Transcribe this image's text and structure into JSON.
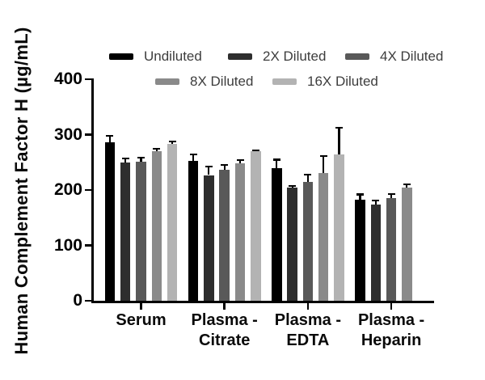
{
  "figure": {
    "background": "#ffffff",
    "axis_color": "#000000"
  },
  "chart_data": {
    "type": "bar",
    "title": "",
    "ylabel": "Human Complement Factor H (µg/mL)",
    "xlabel": "",
    "ylim": [
      0,
      400
    ],
    "yticks": [
      0,
      100,
      200,
      300,
      400
    ],
    "grid": false,
    "legend_position": "top",
    "error_direction": "up",
    "categories": [
      "Serum",
      "Plasma - Citrate",
      "Plasma - EDTA",
      "Plasma - Heparin"
    ],
    "category_lines": [
      [
        "Serum"
      ],
      [
        "Plasma -",
        "Citrate"
      ],
      [
        "Plasma -",
        "EDTA"
      ],
      [
        "Plasma -",
        "Heparin"
      ]
    ],
    "series": [
      {
        "name": "Undiluted",
        "color": "#000000",
        "values": [
          286,
          253,
          240,
          182
        ],
        "errors": [
          12,
          11,
          15,
          10
        ]
      },
      {
        "name": "2X Diluted",
        "color": "#2e2e2e",
        "values": [
          249,
          227,
          204,
          174
        ],
        "errors": [
          8,
          16,
          3,
          7
        ]
      },
      {
        "name": "4X Diluted",
        "color": "#595959",
        "values": [
          251,
          236,
          215,
          186
        ],
        "errors": [
          8,
          9,
          13,
          7
        ]
      },
      {
        "name": "8X Diluted",
        "color": "#8a8a8a",
        "values": [
          270,
          248,
          230,
          205
        ],
        "errors": [
          4,
          6,
          32,
          5
        ]
      },
      {
        "name": "16X Diluted",
        "color": "#b3b3b3",
        "values": [
          283,
          270,
          264,
          null
        ],
        "errors": [
          5,
          2,
          48,
          null
        ]
      }
    ]
  }
}
